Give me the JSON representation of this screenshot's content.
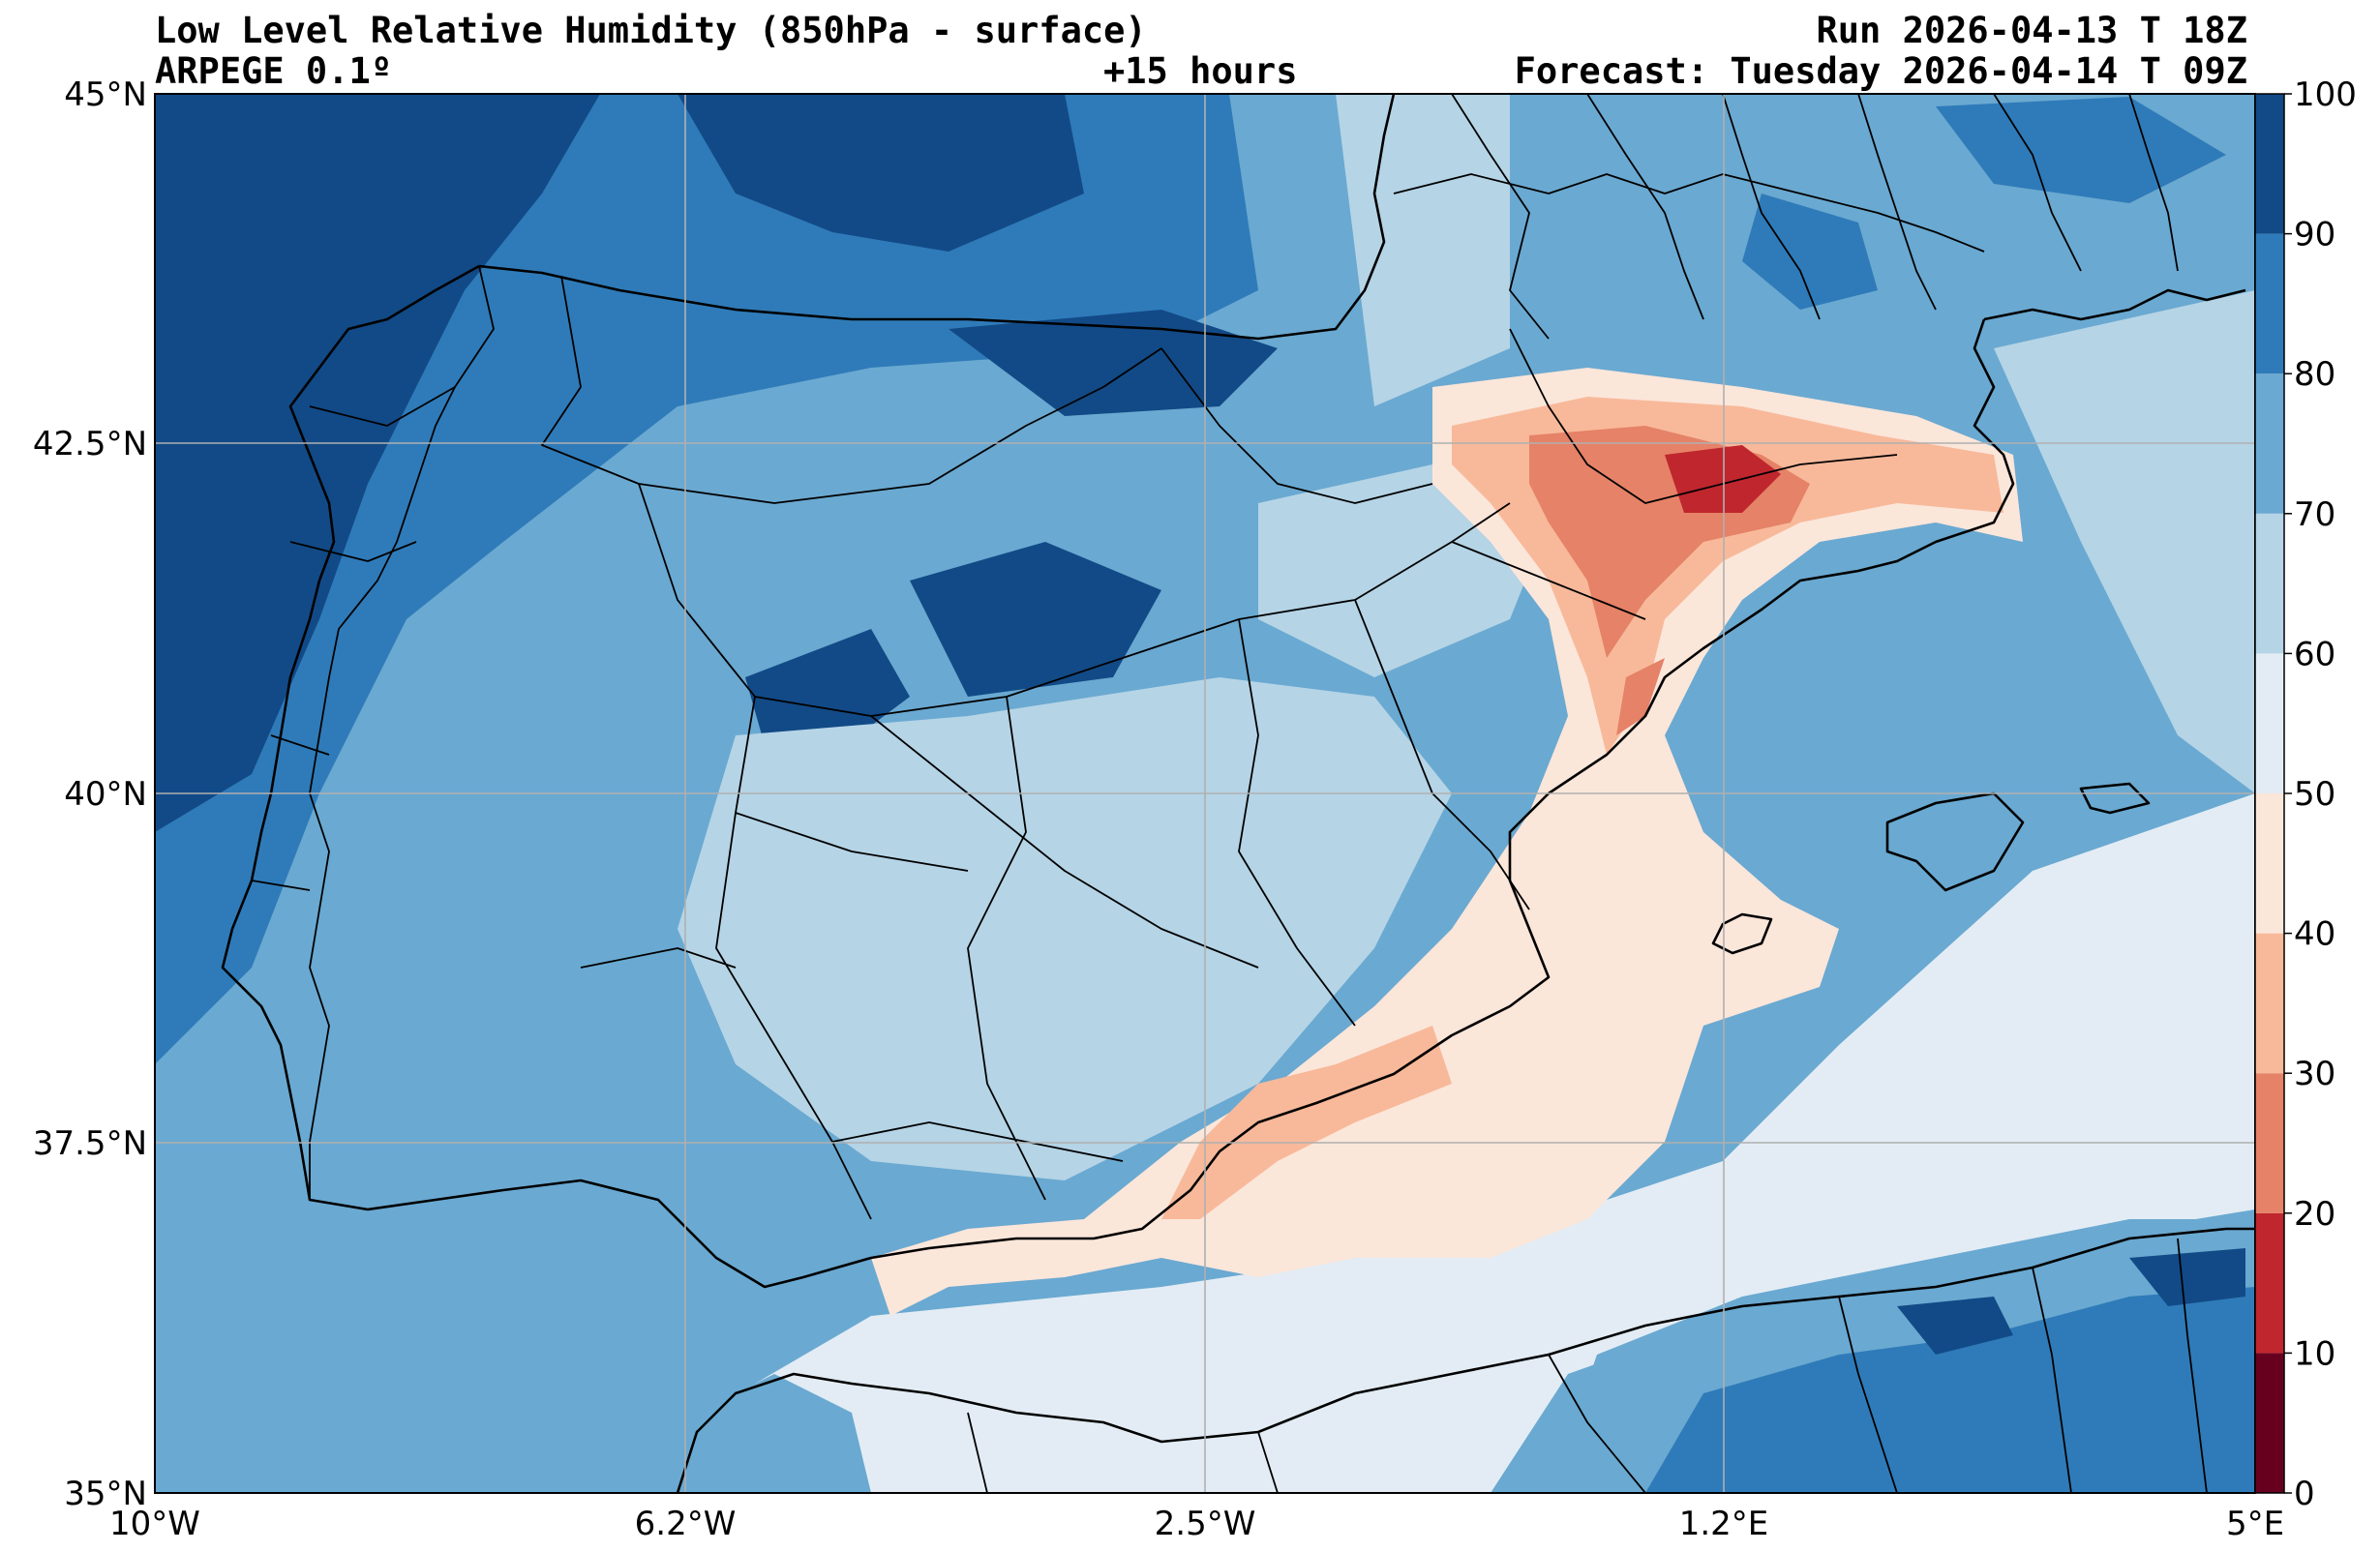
{
  "header": {
    "title": "Low Level Relative Humidity (850hPa - surface)",
    "model": "ARPEGE 0.1º",
    "lead_time": "+15 hours",
    "run": "Run 2026-04-13 T 18Z",
    "forecast": "Forecast: Tuesday 2026-04-14 T 09Z"
  },
  "map": {
    "region": "Iberian Peninsula and western Mediterranean",
    "lat_labels": [
      "45°N",
      "42.5°N",
      "40°N",
      "37.5°N",
      "35°N"
    ],
    "lon_labels": [
      "10°W",
      "6.2°W",
      "2.5°W",
      "1.2°E",
      "5°E"
    ],
    "grid": true
  },
  "colorbar": {
    "ticks": [
      "0",
      "10",
      "20",
      "30",
      "40",
      "50",
      "60",
      "70",
      "80",
      "90",
      "100"
    ],
    "bins": [
      {
        "min": 0,
        "max": 10,
        "color": "#67001f"
      },
      {
        "min": 10,
        "max": 20,
        "color": "#c0262d"
      },
      {
        "min": 20,
        "max": 30,
        "color": "#e58267"
      },
      {
        "min": 30,
        "max": 40,
        "color": "#f8b99a"
      },
      {
        "min": 40,
        "max": 50,
        "color": "#fbe6da"
      },
      {
        "min": 50,
        "max": 60,
        "color": "#e3ecf4"
      },
      {
        "min": 60,
        "max": 70,
        "color": "#b5d4e6"
      },
      {
        "min": 70,
        "max": 80,
        "color": "#6aa9d1"
      },
      {
        "min": 80,
        "max": 90,
        "color": "#2f7bb9"
      },
      {
        "min": 90,
        "max": 100,
        "color": "#124a87"
      }
    ]
  }
}
